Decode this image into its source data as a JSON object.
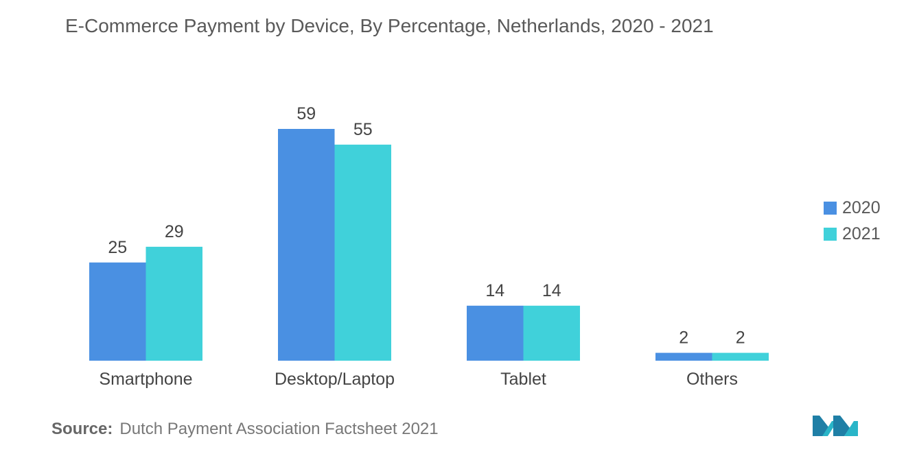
{
  "chart_data": {
    "type": "bar",
    "title": "E-Commerce Payment by Device, By Percentage, Netherlands, 2020 - 2021",
    "categories": [
      "Smartphone",
      "Desktop/Laptop",
      "Tablet",
      "Others"
    ],
    "series": [
      {
        "name": "2020",
        "values": [
          25,
          59,
          14,
          2
        ],
        "color": "#4a90e2"
      },
      {
        "name": "2021",
        "values": [
          29,
          55,
          14,
          2
        ],
        "color": "#40d1da"
      }
    ],
    "xlabel": "",
    "ylabel": "",
    "ylim": [
      0,
      59
    ],
    "grid": false,
    "legend_position": "right"
  },
  "source": {
    "label": "Source:",
    "text": "Dutch Payment Association Factsheet 2021"
  },
  "logo_icon": "mordor-intelligence-logo"
}
